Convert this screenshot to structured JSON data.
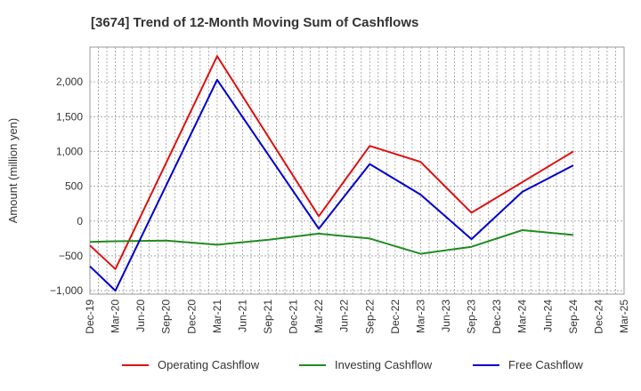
{
  "chart_data": {
    "type": "line",
    "title": "[3674]  Trend of 12-Month Moving Sum of Cashflows",
    "xlabel": "",
    "ylabel": "Amount (million yen)",
    "categories": [
      "Dec-19",
      "Mar-20",
      "Jun-20",
      "Sep-20",
      "Dec-20",
      "Mar-21",
      "Jun-21",
      "Sep-21",
      "Dec-21",
      "Mar-22",
      "Jun-22",
      "Sep-22",
      "Dec-22",
      "Mar-23",
      "Jun-23",
      "Sep-23",
      "Dec-23",
      "Mar-24",
      "Jun-24",
      "Sep-24",
      "Dec-24",
      "Mar-25"
    ],
    "ylim": [
      -1050,
      2500
    ],
    "yticks": [
      -1000,
      -500,
      0,
      500,
      1000,
      1500,
      2000
    ],
    "ytick_labels": [
      "−1,000",
      "−500",
      "0",
      "500",
      "1,000",
      "1,500",
      "2,000"
    ],
    "grid": true,
    "legend_position": "bottom",
    "series": [
      {
        "name": "Operating Cashflow",
        "color": "#dd1111",
        "values": [
          -350,
          -690,
          null,
          null,
          null,
          2370,
          null,
          null,
          null,
          70,
          null,
          1080,
          null,
          850,
          null,
          120,
          null,
          null,
          null,
          1000,
          null,
          null
        ]
      },
      {
        "name": "Investing Cashflow",
        "color": "#228b22",
        "values": [
          -300,
          -290,
          null,
          -280,
          null,
          -340,
          null,
          -270,
          null,
          -180,
          null,
          -250,
          null,
          -470,
          null,
          -370,
          null,
          -130,
          null,
          -200,
          null,
          null
        ]
      },
      {
        "name": "Free Cashflow",
        "color": "#0000cc",
        "values": [
          -650,
          -1000,
          null,
          null,
          null,
          2030,
          null,
          null,
          null,
          -110,
          null,
          820,
          null,
          380,
          null,
          -260,
          null,
          420,
          null,
          800,
          null,
          null
        ]
      }
    ]
  }
}
